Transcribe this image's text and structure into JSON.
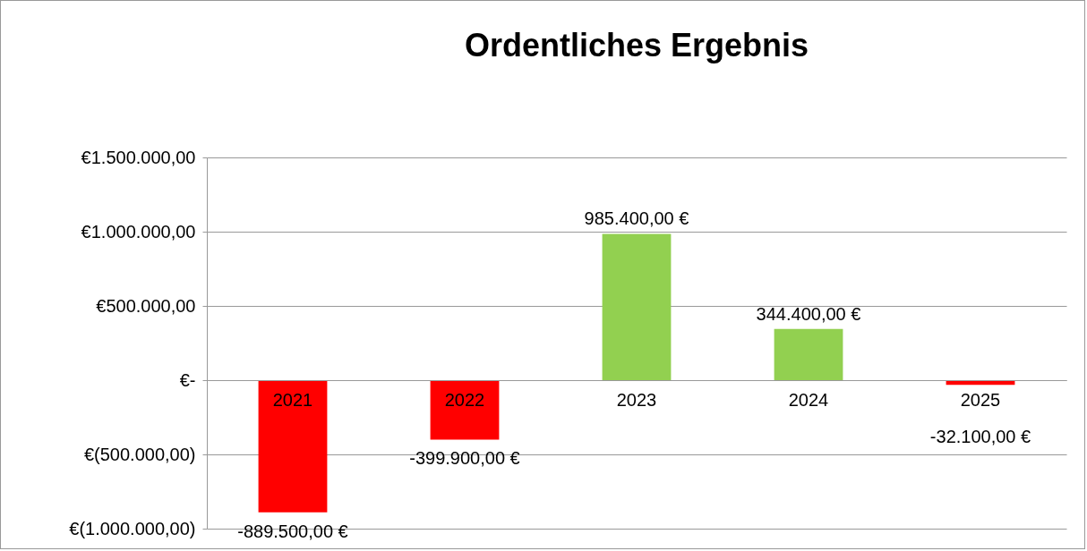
{
  "chart_data": {
    "type": "bar",
    "title": "Ordentliches Ergebnis",
    "categories": [
      "2021",
      "2022",
      "2023",
      "2024",
      "2025"
    ],
    "values": [
      -889500,
      -399900,
      985400,
      344400,
      -32100
    ],
    "colors": [
      "#ff0000",
      "#ff0000",
      "#92d050",
      "#92d050",
      "#ff0000"
    ],
    "value_labels": [
      "-889.500,00 €",
      "-399.900,00 €",
      "985.400,00 €",
      "344.400,00 €",
      "-32.100,00 €"
    ],
    "ylim": [
      -1000000,
      1500000
    ],
    "yticks": [
      {
        "value": -1000000,
        "label": "€(1.000.000,00)"
      },
      {
        "value": -500000,
        "label": "€(500.000,00)"
      },
      {
        "value": 0,
        "label": "€-"
      },
      {
        "value": 500000,
        "label": "€500.000,00"
      },
      {
        "value": 1000000,
        "label": "€1.000.000,00"
      },
      {
        "value": 1500000,
        "label": "€1.500.000,00"
      }
    ],
    "grid": "y"
  }
}
